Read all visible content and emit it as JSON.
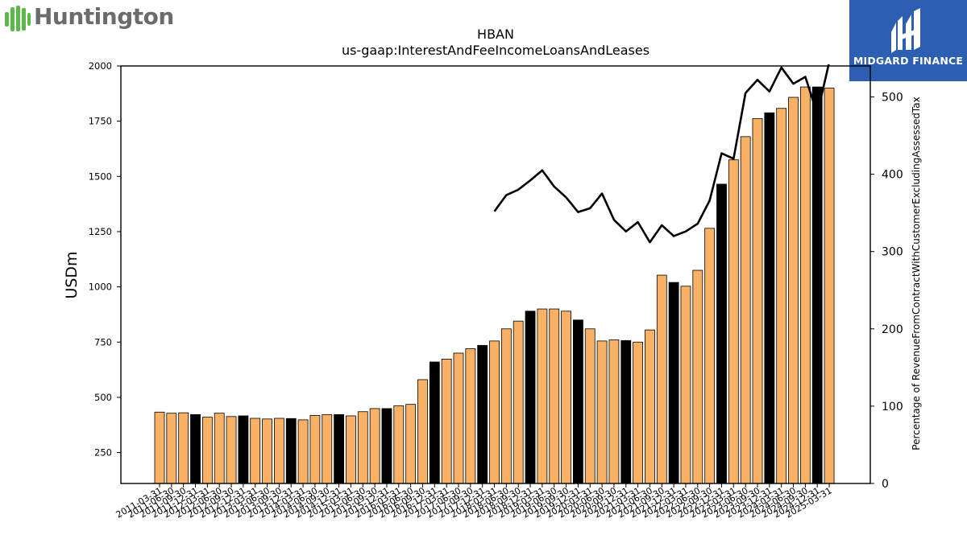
{
  "logos": {
    "left_brand": "Huntington",
    "right_brand": "MIDGARD FINANCE"
  },
  "colors": {
    "bar_fill": "#f9b166",
    "bar_highlight": "#000000",
    "line": "#000000",
    "left_logo_green": "#5bb947",
    "right_logo_bg": "#2c5fb2"
  },
  "chart_data": {
    "type": "bar",
    "title": "HBAN",
    "subtitle": "us-gaap:InterestAndFeeIncomeLoansAndLeases",
    "ylabel": "USDm",
    "y2label": "Percentage of RevenueFromContractWithCustomerExcludingAssessedTax",
    "ylim": [
      110,
      2000
    ],
    "y2lim": [
      0,
      540
    ],
    "yticks": [
      250,
      500,
      750,
      1000,
      1250,
      1500,
      1750,
      2000
    ],
    "y2ticks": [
      0,
      100,
      200,
      300,
      400,
      500
    ],
    "grid": false,
    "categories": [
      "2011-03-31",
      "2011-06-30",
      "2011-09-30",
      "2011-12-31",
      "2012-03-31",
      "2012-06-30",
      "2012-09-30",
      "2012-12-31",
      "2013-03-31",
      "2013-06-30",
      "2013-09-30",
      "2013-12-31",
      "2014-03-31",
      "2014-06-30",
      "2014-09-30",
      "2014-12-31",
      "2015-03-31",
      "2015-06-30",
      "2015-09-30",
      "2015-12-31",
      "2016-03-31",
      "2016-06-30",
      "2016-09-30",
      "2016-12-31",
      "2017-03-31",
      "2017-06-30",
      "2017-09-30",
      "2017-12-31",
      "2018-03-31",
      "2018-06-30",
      "2018-09-30",
      "2018-12-31",
      "2019-03-31",
      "2019-06-30",
      "2019-09-30",
      "2019-12-31",
      "2020-03-31",
      "2020-06-30",
      "2020-09-30",
      "2020-12-31",
      "2021-03-31",
      "2021-06-30",
      "2021-09-30",
      "2021-12-31",
      "2022-03-31",
      "2022-06-30",
      "2022-09-30",
      "2022-12-31",
      "2023-03-31",
      "2023-06-30",
      "2023-09-30",
      "2023-12-31",
      "2024-03-31",
      "2024-06-30",
      "2024-09-30",
      "2024-12-31",
      "2025-03-31"
    ],
    "values": [
      433,
      428,
      430,
      422,
      410,
      428,
      413,
      416,
      405,
      402,
      405,
      404,
      398,
      418,
      422,
      422,
      416,
      435,
      449,
      449,
      462,
      468,
      580,
      660,
      673,
      700,
      720,
      735,
      755,
      810,
      845,
      890,
      900,
      900,
      890,
      850,
      810,
      755,
      760,
      757,
      750,
      805,
      1053,
      1020,
      1003,
      1075,
      1265,
      1465,
      1575,
      1680,
      1762,
      1788,
      1808,
      1858,
      1905,
      1905,
      1900
    ],
    "highlight": [
      false,
      false,
      false,
      true,
      false,
      false,
      false,
      true,
      false,
      false,
      false,
      true,
      false,
      false,
      false,
      true,
      false,
      false,
      false,
      true,
      false,
      false,
      false,
      true,
      false,
      false,
      false,
      true,
      false,
      false,
      false,
      true,
      false,
      false,
      false,
      true,
      false,
      false,
      false,
      true,
      false,
      false,
      false,
      true,
      false,
      false,
      false,
      true,
      false,
      false,
      false,
      true,
      false,
      false,
      false,
      true,
      false
    ],
    "line_series": {
      "axis": "right",
      "values": [
        null,
        null,
        null,
        null,
        null,
        null,
        null,
        null,
        null,
        null,
        null,
        null,
        null,
        null,
        null,
        null,
        null,
        null,
        null,
        null,
        null,
        null,
        null,
        null,
        null,
        null,
        null,
        null,
        352,
        373,
        380,
        392,
        405,
        384,
        370,
        351,
        356,
        375,
        341,
        326,
        338,
        312,
        334,
        320,
        326,
        336,
        366,
        427,
        420,
        505,
        522,
        507,
        538,
        517,
        526,
        478,
        545
      ]
    }
  }
}
